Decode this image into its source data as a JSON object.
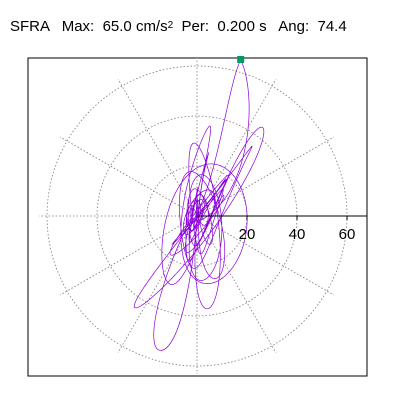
{
  "header": {
    "name": "SFRA",
    "max_label": "Max:",
    "max_value": "65.0",
    "max_unit": "cm/s",
    "max_unit_exp": "2",
    "per_label": "Per:",
    "per_value": "0.200 s",
    "ang_label": "Ang:",
    "ang_value": "74.4"
  },
  "chart_data": {
    "type": "polar-orbit",
    "max_amplitude": 65.0,
    "max_angle_deg": 74.4,
    "radial_rings": [
      20,
      40,
      60
    ],
    "radial_tick_labels": [
      "20",
      "40",
      "60"
    ],
    "angular_spokes_deg": [
      0,
      30,
      60,
      90,
      120,
      150,
      180,
      210,
      240,
      270,
      300,
      330
    ],
    "grid": true,
    "colors": {
      "trace": "#8B00D9",
      "grid": "#7a7a7a",
      "axis": "#000000",
      "peak_marker": "#009966"
    }
  }
}
